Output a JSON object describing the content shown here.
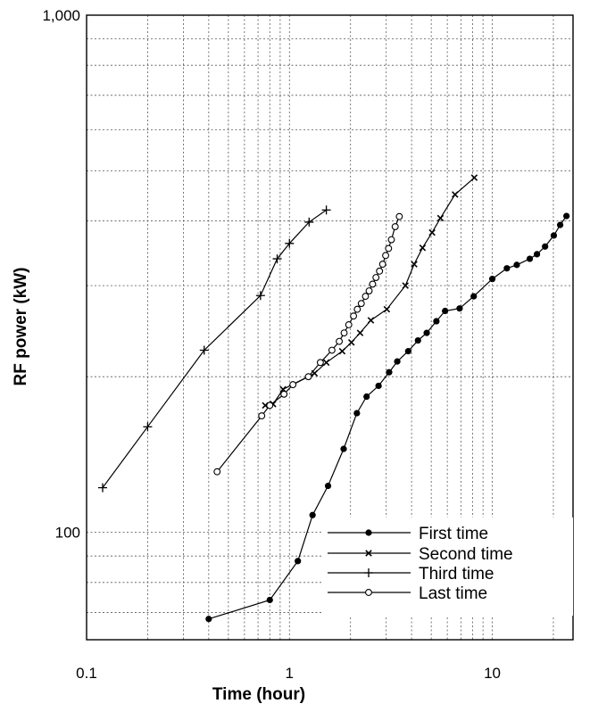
{
  "chart_data": {
    "type": "line",
    "title": "",
    "xlabel": "Time  (hour)",
    "ylabel": "RF  power  (kW)",
    "xscale": "log",
    "yscale": "log",
    "xlim": [
      0.1,
      25
    ],
    "ylim": [
      62,
      1000
    ],
    "grid": true,
    "legend_position": "bottom-right",
    "x_ticks": [
      {
        "value": 0.1,
        "label": "0.1"
      },
      {
        "value": 1,
        "label": "1"
      },
      {
        "value": 10,
        "label": "10"
      }
    ],
    "y_ticks": [
      {
        "value": 100,
        "label": "100"
      },
      {
        "value": 1000,
        "label": "1,000"
      }
    ],
    "series": [
      {
        "name": "First time",
        "marker": "filled-circle",
        "x": [
          0.4,
          0.8,
          1.1,
          1.3,
          1.55,
          1.85,
          2.15,
          2.4,
          2.75,
          3.1,
          3.4,
          3.85,
          4.3,
          4.75,
          5.3,
          5.85,
          6.9,
          8.1,
          10,
          11.8,
          13.2,
          15.3,
          16.6,
          18.2,
          20.1,
          21.6,
          23.2
        ],
        "y": [
          68,
          74,
          88,
          108,
          123,
          145,
          170,
          183,
          192,
          204,
          214,
          224,
          235,
          243,
          256,
          268,
          271,
          286,
          309,
          324,
          329,
          338,
          345,
          357,
          375,
          393,
          409
        ]
      },
      {
        "name": "Second time",
        "marker": "x-cross",
        "x": [
          0.76,
          0.83,
          0.93,
          1.33,
          1.52,
          1.82,
          2.02,
          2.23,
          2.52,
          3.02,
          3.73,
          4.12,
          4.53,
          5.05,
          5.55,
          6.55,
          8.15
        ],
        "y": [
          176,
          177,
          189,
          203,
          213,
          224,
          233,
          243,
          257,
          270,
          300,
          330,
          355,
          380,
          405,
          450,
          485
        ]
      },
      {
        "name": "Third time",
        "marker": "plus",
        "x": [
          0.12,
          0.2,
          0.38,
          0.72,
          0.87,
          1.0,
          1.25,
          1.52
        ],
        "y": [
          122,
          160,
          225,
          287,
          338,
          362,
          398,
          420
        ]
      },
      {
        "name": "Last time",
        "marker": "open-circle",
        "x": [
          0.44,
          0.73,
          0.8,
          0.94,
          1.04,
          1.24,
          1.42,
          1.62,
          1.76,
          1.86,
          1.96,
          2.07,
          2.16,
          2.26,
          2.37,
          2.47,
          2.57,
          2.67,
          2.78,
          2.88,
          2.98,
          3.08,
          3.18,
          3.32,
          3.48
        ],
        "y": [
          131,
          168,
          176,
          185,
          193,
          200,
          213,
          225,
          234,
          243,
          252,
          262,
          270,
          277,
          286,
          293,
          302,
          311,
          320,
          330,
          343,
          354,
          368,
          390,
          408
        ]
      }
    ]
  }
}
